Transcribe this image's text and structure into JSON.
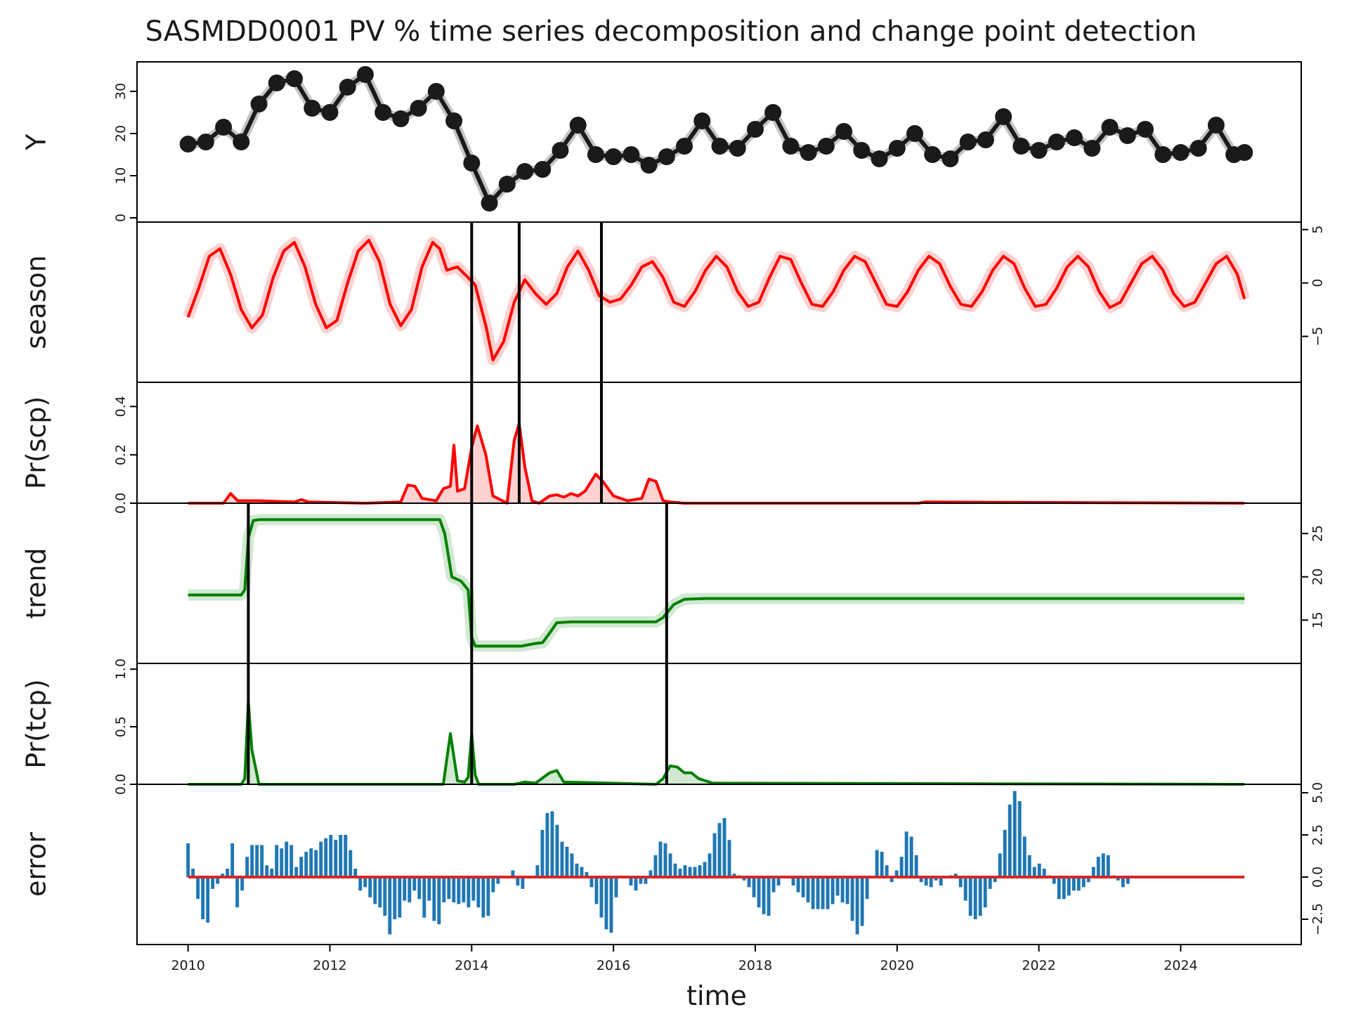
{
  "chart_data": {
    "type": "line",
    "title": "SASMDD0001 PV % time series decomposition and change point detection",
    "xlabel": "time",
    "xlim": [
      2009.28,
      2025.7
    ],
    "x_ticks": [
      "2010",
      "2012",
      "2014",
      "2016",
      "2018",
      "2020",
      "2022",
      "2024"
    ],
    "colors": {
      "y": "#1a1a1a",
      "season": "#ff0000",
      "trend": "#008000",
      "error_bar": "#1f77b4",
      "error_zero": "#d62728",
      "changepoint": "#000000"
    },
    "panels": [
      {
        "label": "Y",
        "axis_side": "left",
        "ylim": [
          -1,
          37
        ],
        "yticks": [
          "0",
          "10",
          "20",
          "30"
        ],
        "series": [
          {
            "type": "line-marker",
            "x": [
              2010.0,
              2010.25,
              2010.5,
              2010.75,
              2011.0,
              2011.25,
              2011.5,
              2011.75,
              2012.0,
              2012.25,
              2012.5,
              2012.75,
              2013.0,
              2013.25,
              2013.5,
              2013.75,
              2014.0,
              2014.25,
              2014.5,
              2014.75,
              2015.0,
              2015.25,
              2015.5,
              2015.75,
              2016.0,
              2016.25,
              2016.5,
              2016.75,
              2017.0,
              2017.25,
              2017.5,
              2017.75,
              2018.0,
              2018.25,
              2018.5,
              2018.75,
              2019.0,
              2019.25,
              2019.5,
              2019.75,
              2020.0,
              2020.25,
              2020.5,
              2020.75,
              2021.0,
              2021.25,
              2021.5,
              2021.75,
              2022.0,
              2022.25,
              2022.5,
              2022.75,
              2023.0,
              2023.25,
              2023.5,
              2023.75,
              2024.0,
              2024.25,
              2024.5,
              2024.75,
              2024.9
            ],
            "y": [
              17.5,
              18,
              21.5,
              18,
              27,
              32,
              33,
              26,
              25,
              31,
              34,
              25,
              23.5,
              26,
              30,
              23,
              13,
              3.5,
              8,
              11,
              11.5,
              16,
              22,
              15,
              14.5,
              15,
              12.5,
              14.5,
              17,
              23,
              17,
              16.5,
              21,
              25,
              17,
              15.5,
              17,
              20.5,
              16,
              14,
              16.5,
              20,
              15,
              14,
              18,
              18.5,
              24,
              17,
              16,
              18,
              19,
              16.5,
              21.5,
              19.5,
              21,
              15,
              15.5,
              16.5,
              22,
              15,
              15.5
            ]
          }
        ]
      },
      {
        "label": "season",
        "axis_side": "right",
        "ylim": [
          -9.3,
          5.7
        ],
        "yticks": [
          "−5",
          "0",
          "5"
        ],
        "series": [
          {
            "type": "line",
            "x": [
              2010.0,
              2010.15,
              2010.3,
              2010.45,
              2010.6,
              2010.75,
              2010.9,
              2011.05,
              2011.2,
              2011.35,
              2011.5,
              2011.65,
              2011.8,
              2011.95,
              2012.1,
              2012.25,
              2012.4,
              2012.55,
              2012.7,
              2012.85,
              2013.0,
              2013.15,
              2013.3,
              2013.45,
              2013.55,
              2013.65,
              2013.8,
              2013.95,
              2014.05,
              2014.2,
              2014.3,
              2014.45,
              2014.6,
              2014.75,
              2014.9,
              2015.05,
              2015.2,
              2015.35,
              2015.5,
              2015.65,
              2015.8,
              2015.95,
              2016.1,
              2016.25,
              2016.4,
              2016.55,
              2016.7,
              2016.85,
              2017.0,
              2017.15,
              2017.3,
              2017.45,
              2017.6,
              2017.75,
              2017.9,
              2018.05,
              2018.2,
              2018.35,
              2018.5,
              2018.65,
              2018.8,
              2018.95,
              2019.1,
              2019.25,
              2019.4,
              2019.55,
              2019.7,
              2019.85,
              2020.0,
              2020.15,
              2020.3,
              2020.45,
              2020.6,
              2020.75,
              2020.9,
              2021.05,
              2021.2,
              2021.35,
              2021.5,
              2021.65,
              2021.8,
              2021.95,
              2022.1,
              2022.25,
              2022.4,
              2022.55,
              2022.7,
              2022.85,
              2023.0,
              2023.15,
              2023.3,
              2023.45,
              2023.6,
              2023.75,
              2023.9,
              2024.05,
              2024.2,
              2024.35,
              2024.5,
              2024.65,
              2024.8,
              2024.9
            ],
            "y": [
              -3.2,
              -0.5,
              2.5,
              3.2,
              0.8,
              -2.5,
              -4.2,
              -3.0,
              0.5,
              3.0,
              3.8,
              1.5,
              -2.0,
              -4.2,
              -3.5,
              0.0,
              3.0,
              4.0,
              2.0,
              -2.0,
              -4.0,
              -2.5,
              1.5,
              3.8,
              3.2,
              1.2,
              1.5,
              0.5,
              -0.2,
              -4.0,
              -7.2,
              -5.5,
              -1.8,
              0.3,
              -1.0,
              -2.0,
              -1.0,
              1.5,
              3.0,
              1.2,
              -1.2,
              -1.8,
              -1.5,
              -0.2,
              1.5,
              2.0,
              0.5,
              -1.8,
              -2.2,
              -0.8,
              1.2,
              2.5,
              1.5,
              -0.8,
              -2.2,
              -1.8,
              0.5,
              2.5,
              2.2,
              0.0,
              -2.0,
              -2.2,
              -0.8,
              1.2,
              2.5,
              2.0,
              0.0,
              -2.0,
              -2.2,
              -0.8,
              1.2,
              2.5,
              1.8,
              -0.3,
              -2.0,
              -2.2,
              -0.8,
              1.2,
              2.5,
              1.8,
              -0.5,
              -2.2,
              -2.0,
              -0.5,
              1.5,
              2.5,
              1.5,
              -0.8,
              -2.3,
              -1.8,
              0.0,
              1.8,
              2.5,
              1.2,
              -1.0,
              -2.2,
              -1.8,
              0.0,
              1.8,
              2.5,
              0.8,
              -1.5
            ]
          }
        ]
      },
      {
        "label": "Pr(scp)",
        "axis_side": "left",
        "ylim": [
          0,
          0.5
        ],
        "yticks": [
          "0.0",
          "0.2",
          "0.4"
        ],
        "series": [
          {
            "type": "line-fill",
            "x": [
              2010.0,
              2010.5,
              2010.6,
              2010.7,
              2011.0,
              2011.5,
              2011.6,
              2011.7,
              2012.5,
              2013.0,
              2013.1,
              2013.2,
              2013.3,
              2013.5,
              2013.6,
              2013.7,
              2013.75,
              2013.8,
              2013.9,
              2014.0,
              2014.08,
              2014.2,
              2014.3,
              2014.5,
              2014.6,
              2014.67,
              2014.75,
              2014.85,
              2014.95,
              2015.0,
              2015.1,
              2015.2,
              2015.3,
              2015.4,
              2015.5,
              2015.6,
              2015.75,
              2015.85,
              2016.0,
              2016.2,
              2016.4,
              2016.5,
              2016.6,
              2016.7,
              2016.8,
              2017.0,
              2020.3,
              2020.4,
              2024.9
            ],
            "y": [
              0,
              0,
              0.04,
              0.01,
              0.01,
              0.005,
              0.015,
              0.005,
              0,
              0.005,
              0.075,
              0.07,
              0.02,
              0.01,
              0.06,
              0.07,
              0.24,
              0.05,
              0.06,
              0.23,
              0.32,
              0.2,
              0.03,
              0,
              0.26,
              0.33,
              0.15,
              0.01,
              0,
              0.01,
              0.03,
              0.035,
              0.025,
              0.04,
              0.03,
              0.05,
              0.12,
              0.09,
              0.03,
              0.01,
              0.02,
              0.1,
              0.09,
              0.01,
              0.005,
              0,
              0,
              0.005,
              0
            ]
          }
        ]
      },
      {
        "label": "trend",
        "axis_side": "right",
        "ylim": [
          10,
          28.5
        ],
        "yticks": [
          "15",
          "20",
          "25"
        ],
        "series": [
          {
            "type": "line",
            "x": [
              2010.0,
              2010.75,
              2010.8,
              2010.85,
              2010.92,
              2011.0,
              2013.55,
              2013.62,
              2013.72,
              2013.85,
              2013.95,
              2014.0,
              2014.05,
              2014.3,
              2014.7,
              2014.9,
              2015.0,
              2015.1,
              2015.2,
              2015.4,
              2016.6,
              2016.7,
              2016.85,
              2017.0,
              2017.3,
              2024.9
            ],
            "y": [
              17.9,
              17.9,
              18.5,
              24.5,
              26.5,
              26.6,
              26.6,
              25.0,
              20.0,
              19.5,
              18.5,
              13.0,
              12.0,
              12.0,
              12.0,
              12.3,
              12.4,
              13.5,
              14.7,
              14.8,
              14.8,
              15.3,
              16.8,
              17.4,
              17.5,
              17.5
            ]
          }
        ]
      },
      {
        "label": "Pr(tcp)",
        "axis_side": "left",
        "ylim": [
          0,
          1.05
        ],
        "yticks": [
          "0.0",
          "0.5",
          "1.0"
        ],
        "series": [
          {
            "type": "line-fill",
            "x": [
              2010.0,
              2010.75,
              2010.8,
              2010.85,
              2010.9,
              2011.0,
              2013.6,
              2013.7,
              2013.8,
              2013.9,
              2013.95,
              2014.0,
              2014.05,
              2014.1,
              2014.6,
              2014.75,
              2014.9,
              2015.1,
              2015.2,
              2015.3,
              2016.6,
              2016.7,
              2016.8,
              2016.9,
              2017.0,
              2017.1,
              2017.2,
              2017.4,
              2024.9
            ],
            "y": [
              0,
              0,
              0.05,
              0.72,
              0.3,
              0,
              0,
              0.44,
              0.03,
              0.02,
              0.06,
              0.44,
              0.08,
              0,
              0,
              0.02,
              0.01,
              0.1,
              0.12,
              0.02,
              0,
              0.05,
              0.16,
              0.15,
              0.1,
              0.1,
              0.05,
              0.01,
              0
            ]
          }
        ]
      },
      {
        "label": "error",
        "axis_side": "right",
        "ylim": [
          -4,
          5.5
        ],
        "yticks": [
          "−2.5",
          "0.0",
          "2.5",
          "5.0"
        ],
        "series": [
          {
            "type": "bar",
            "x0": 2010.0,
            "dx": 0.0694,
            "values": [
              2,
              0.5,
              -1.3,
              -2.5,
              -2.7,
              -0.7,
              -0.4,
              0.2,
              0.5,
              2,
              -1.8,
              -0.8,
              1.2,
              1.9,
              1.9,
              1.9,
              0.7,
              0.5,
              1.9,
              1.7,
              2.1,
              1.9,
              0.6,
              1.2,
              1.5,
              1.7,
              1.6,
              2.1,
              2.3,
              2.5,
              2.2,
              2.5,
              2.5,
              1.6,
              0.5,
              -0.8,
              -0.6,
              -1.2,
              -1.6,
              -1.8,
              -2.3,
              -3.4,
              -2.5,
              -2.4,
              -1.4,
              -1.5,
              -0.8,
              -1.3,
              -2.4,
              -1.4,
              -2.6,
              -2.8,
              -1.5,
              -1.3,
              -1.5,
              -1.6,
              -1.5,
              -1.8,
              -1.4,
              -1.8,
              -2.4,
              -2.3,
              -0.9,
              -0.4,
              0,
              0,
              0.4,
              -0.5,
              -0.7,
              0,
              0,
              0.7,
              2.8,
              3.8,
              3.9,
              3.1,
              2.1,
              1.8,
              1.4,
              0.8,
              0.6,
              0.3,
              -0.6,
              -1.6,
              -2.4,
              -3.1,
              -3.3,
              -1.2,
              0,
              0,
              -0.5,
              -0.8,
              -0.4,
              -0.4,
              0.4,
              1.3,
              2.1,
              2,
              1.4,
              0.8,
              0.5,
              0.7,
              0.6,
              0.6,
              0.7,
              0.9,
              1.4,
              2.6,
              3.2,
              3.5,
              2.2,
              0.2,
              0.1,
              -0.2,
              -0.6,
              -1.2,
              -1.8,
              -2.2,
              -2.3,
              -0.9,
              -0.5,
              0,
              0,
              -0.5,
              -0.9,
              -1.2,
              -1.5,
              -1.9,
              -1.9,
              -1.9,
              -1.9,
              -1.6,
              -1.1,
              -1.5,
              -1.6,
              -2.6,
              -3.4,
              -2.9,
              -1.3,
              0,
              1.6,
              1.5,
              0.7,
              -0.3,
              0.4,
              1.2,
              2.7,
              2.4,
              1.3,
              -0.3,
              -0.5,
              -0.6,
              -0.2,
              -0.5,
              0,
              0.1,
              0.2,
              -0.6,
              -1.4,
              -2.3,
              -2.5,
              -2.3,
              -1.8,
              -0.7,
              -0.3,
              1.4,
              2.8,
              4.3,
              5.1,
              4.5,
              2.4,
              1.3,
              0.6,
              0.8,
              0.5,
              0.1,
              -0.4,
              -1.3,
              -1.3,
              -1.1,
              -0.8,
              -0.8,
              -0.6,
              -0.3,
              0.6,
              1.2,
              1.4,
              1.3,
              0.1,
              -0.2,
              -0.6,
              -0.4
            ]
          },
          {
            "type": "hline",
            "y": 0
          }
        ]
      }
    ],
    "changepoints": {
      "season": [
        2014.0,
        2014.67,
        2015.83
      ],
      "trend": [
        2010.85,
        2014.0,
        2016.75
      ]
    }
  }
}
